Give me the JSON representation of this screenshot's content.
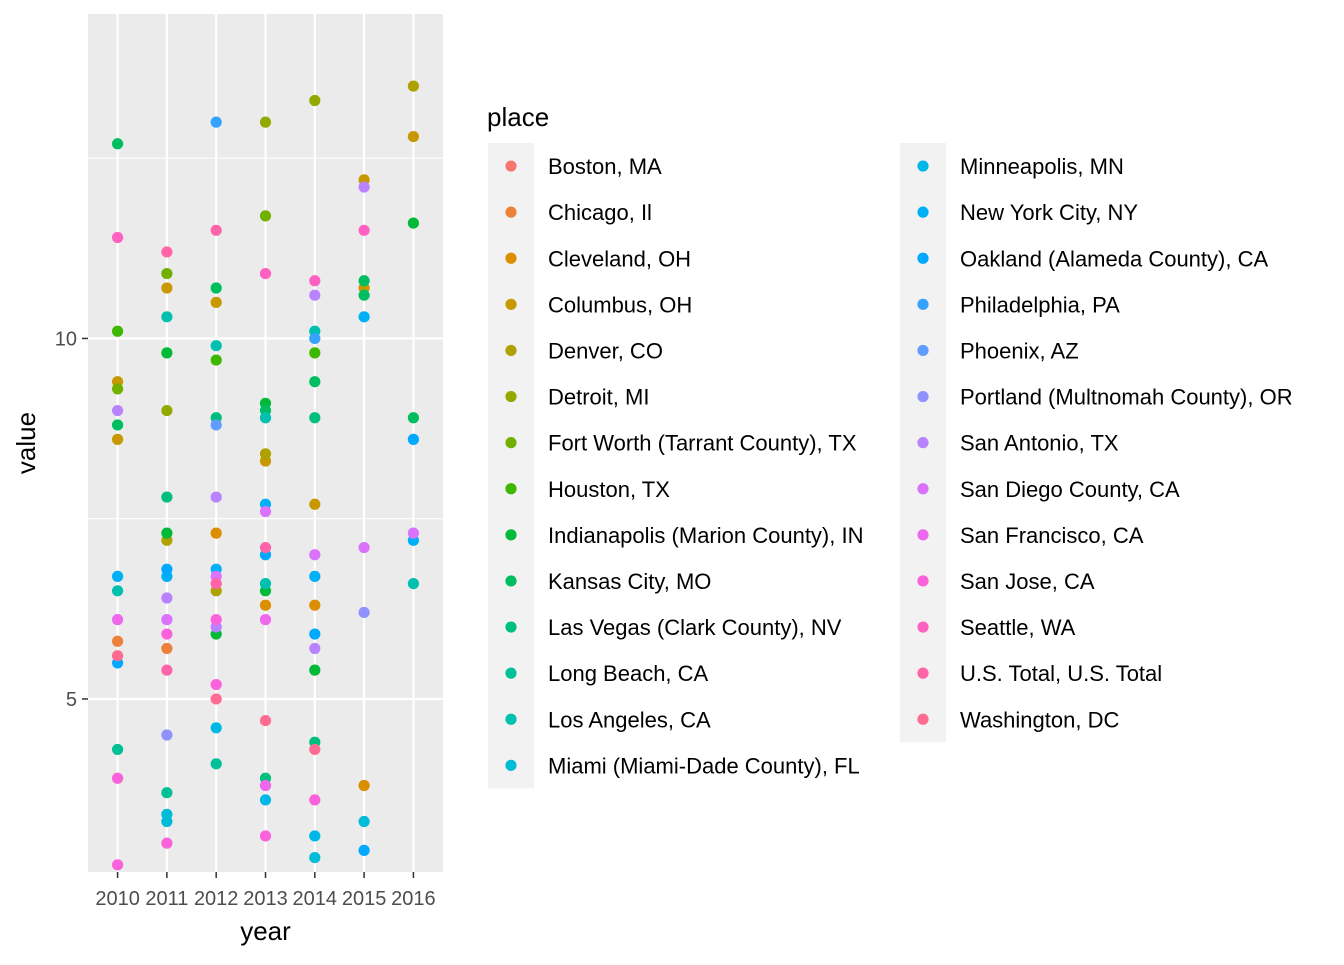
{
  "chart_data": {
    "type": "scatter",
    "xlabel": "year",
    "ylabel": "value",
    "x_categories": [
      "2010",
      "2011",
      "2012",
      "2013",
      "2014",
      "2015",
      "2016"
    ],
    "y_ticks": [
      5,
      10
    ],
    "ylim": [
      2.6,
      14.5
    ],
    "grid": true,
    "legend": {
      "title": "place",
      "placement": "right",
      "columns": 2
    },
    "series": [
      {
        "name": "Boston, MA",
        "color": "#F8766D",
        "points": []
      },
      {
        "name": "Chicago, Il",
        "color": "#EC8239",
        "points": [
          [
            "2010",
            5.8
          ],
          [
            "2011",
            5.7
          ]
        ]
      },
      {
        "name": "Cleveland, OH",
        "color": "#DB8E00",
        "points": [
          [
            "2012",
            7.3
          ],
          [
            "2013",
            6.3
          ],
          [
            "2014",
            6.3
          ],
          [
            "2015",
            3.8
          ]
        ]
      },
      {
        "name": "Columbus, OH",
        "color": "#C79800",
        "points": [
          [
            "2010",
            9.4
          ],
          [
            "2010",
            8.6
          ],
          [
            "2011",
            10.7
          ],
          [
            "2012",
            10.5
          ],
          [
            "2013",
            8.3
          ],
          [
            "2014",
            7.7
          ],
          [
            "2015",
            10.7
          ],
          [
            "2015",
            12.2
          ],
          [
            "2016",
            12.8
          ]
        ]
      },
      {
        "name": "Denver, CO",
        "color": "#AFA100",
        "points": [
          [
            "2011",
            7.2
          ],
          [
            "2012",
            6.5
          ],
          [
            "2013",
            8.4
          ],
          [
            "2016",
            13.5
          ]
        ]
      },
      {
        "name": "Detroit, MI",
        "color": "#94A900",
        "points": [
          [
            "2011",
            9.0
          ],
          [
            "2013",
            13.0
          ],
          [
            "2014",
            13.3
          ]
        ]
      },
      {
        "name": "Fort Worth (Tarrant County), TX",
        "color": "#72B000",
        "points": [
          [
            "2010",
            9.3
          ],
          [
            "2011",
            10.9
          ],
          [
            "2013",
            11.7
          ]
        ]
      },
      {
        "name": "Houston, TX",
        "color": "#3DB700",
        "points": [
          [
            "2010",
            10.1
          ],
          [
            "2012",
            9.7
          ],
          [
            "2014",
            9.8
          ]
        ]
      },
      {
        "name": "Indianapolis (Marion County), IN",
        "color": "#00BA38",
        "points": [
          [
            "2011",
            9.8
          ],
          [
            "2011",
            7.3
          ],
          [
            "2012",
            5.9
          ],
          [
            "2013",
            9.1
          ],
          [
            "2013",
            6.5
          ],
          [
            "2014",
            5.4
          ],
          [
            "2016",
            11.6
          ]
        ]
      },
      {
        "name": "Kansas City, MO",
        "color": "#00BD5F",
        "points": [
          [
            "2010",
            12.7
          ],
          [
            "2010",
            8.8
          ],
          [
            "2012",
            10.7
          ],
          [
            "2013",
            9.0
          ],
          [
            "2014",
            9.4
          ],
          [
            "2015",
            10.8
          ],
          [
            "2015",
            10.6
          ],
          [
            "2016",
            8.9
          ]
        ]
      },
      {
        "name": "Las Vegas (Clark County), NV",
        "color": "#00BF7D",
        "points": [
          [
            "2011",
            7.8
          ],
          [
            "2012",
            8.9
          ],
          [
            "2013",
            3.9
          ],
          [
            "2014",
            8.9
          ],
          [
            "2014",
            4.4
          ]
        ]
      },
      {
        "name": "Long Beach, CA",
        "color": "#00C097",
        "points": [
          [
            "2010",
            4.3
          ],
          [
            "2011",
            3.7
          ],
          [
            "2012",
            4.1
          ]
        ]
      },
      {
        "name": "Los Angeles, CA",
        "color": "#00C0AF",
        "points": [
          [
            "2010",
            6.5
          ],
          [
            "2011",
            10.3
          ],
          [
            "2012",
            9.9
          ],
          [
            "2013",
            8.9
          ],
          [
            "2013",
            6.6
          ],
          [
            "2014",
            10.1
          ],
          [
            "2016",
            6.6
          ]
        ]
      },
      {
        "name": "Miami (Miami-Dade County), FL",
        "color": "#00BCD8",
        "points": [
          [
            "2011",
            3.4
          ],
          [
            "2011",
            3.3
          ],
          [
            "2014",
            2.8
          ],
          [
            "2015",
            3.3
          ]
        ]
      },
      {
        "name": "Minneapolis, MN",
        "color": "#00B8E7",
        "points": [
          [
            "2012",
            4.6
          ],
          [
            "2013",
            3.6
          ],
          [
            "2014",
            3.1
          ]
        ]
      },
      {
        "name": "New York City, NY",
        "color": "#00B0F6",
        "points": [
          [
            "2010",
            6.7
          ],
          [
            "2011",
            6.7
          ],
          [
            "2012",
            6.8
          ],
          [
            "2013",
            7.7
          ],
          [
            "2014",
            6.7
          ],
          [
            "2015",
            10.3
          ],
          [
            "2016",
            7.2
          ]
        ]
      },
      {
        "name": "Oakland (Alameda County), CA",
        "color": "#00A9FF",
        "points": [
          [
            "2010",
            5.5
          ],
          [
            "2011",
            6.8
          ],
          [
            "2013",
            7.0
          ],
          [
            "2014",
            5.9
          ],
          [
            "2015",
            2.9
          ],
          [
            "2016",
            8.6
          ]
        ]
      },
      {
        "name": "Philadelphia, PA",
        "color": "#35A2FF",
        "points": [
          [
            "2012",
            13.0
          ],
          [
            "2014",
            10.0
          ]
        ]
      },
      {
        "name": "Phoenix, AZ",
        "color": "#619CFF",
        "points": [
          [
            "2012",
            8.8
          ]
        ]
      },
      {
        "name": "Portland (Multnomah County), OR",
        "color": "#8F91FF",
        "points": [
          [
            "2011",
            4.5
          ],
          [
            "2015",
            6.2
          ]
        ]
      },
      {
        "name": "San Antonio, TX",
        "color": "#B983FF",
        "points": [
          [
            "2010",
            9.0
          ],
          [
            "2011",
            6.4
          ],
          [
            "2012",
            7.8
          ],
          [
            "2012",
            6.0
          ],
          [
            "2014",
            10.6
          ],
          [
            "2014",
            5.7
          ],
          [
            "2015",
            12.1
          ]
        ]
      },
      {
        "name": "San Diego County, CA",
        "color": "#DB72FB",
        "points": [
          [
            "2011",
            6.1
          ],
          [
            "2012",
            6.7
          ],
          [
            "2013",
            7.6
          ],
          [
            "2014",
            7.0
          ],
          [
            "2015",
            7.1
          ],
          [
            "2016",
            7.3
          ]
        ]
      },
      {
        "name": "San Francisco, CA",
        "color": "#ED68ED",
        "points": [
          [
            "2010",
            6.1
          ],
          [
            "2013",
            6.1
          ],
          [
            "2013",
            3.8
          ]
        ]
      },
      {
        "name": "San Jose, CA",
        "color": "#FA62DB",
        "points": [
          [
            "2010",
            2.7
          ],
          [
            "2010",
            3.9
          ],
          [
            "2011",
            5.9
          ],
          [
            "2011",
            3.0
          ],
          [
            "2012",
            6.1
          ],
          [
            "2012",
            5.2
          ],
          [
            "2013",
            3.1
          ],
          [
            "2014",
            3.6
          ]
        ]
      },
      {
        "name": "Seattle, WA",
        "color": "#FF61C3",
        "points": [
          [
            "2010",
            11.4
          ],
          [
            "2013",
            10.9
          ],
          [
            "2014",
            10.8
          ],
          [
            "2015",
            11.5
          ]
        ]
      },
      {
        "name": "U.S. Total, U.S. Total",
        "color": "#FF63A8",
        "points": [
          [
            "2011",
            11.2
          ],
          [
            "2011",
            5.4
          ],
          [
            "2012",
            11.5
          ],
          [
            "2012",
            6.6
          ],
          [
            "2013",
            7.1
          ]
        ]
      },
      {
        "name": "Washington, DC",
        "color": "#FF6C91",
        "points": [
          [
            "2010",
            5.6
          ],
          [
            "2012",
            5.0
          ],
          [
            "2013",
            4.7
          ],
          [
            "2014",
            4.3
          ]
        ]
      }
    ]
  }
}
